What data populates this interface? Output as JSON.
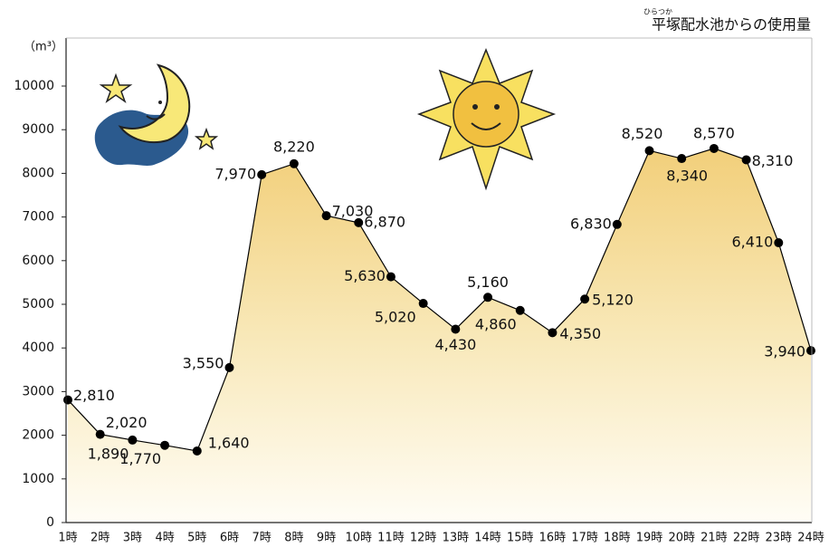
{
  "chart_data": {
    "type": "line",
    "title": "平塚配水池からの使用量",
    "title_ruby": "ひらつか",
    "y_label": "（m³）",
    "categories": [
      "1時",
      "2時",
      "3時",
      "4時",
      "5時",
      "6時",
      "7時",
      "8時",
      "9時",
      "10時",
      "11時",
      "12時",
      "13時",
      "14時",
      "15時",
      "16時",
      "17時",
      "18時",
      "19時",
      "20時",
      "21時",
      "22時",
      "23時",
      "24時"
    ],
    "series": [
      {
        "name": "使用量",
        "color": "#000000",
        "values": [
          2810,
          2020,
          1890,
          1770,
          1640,
          3550,
          7970,
          8220,
          7030,
          6870,
          5630,
          5020,
          4430,
          5160,
          4860,
          4350,
          5120,
          6830,
          8520,
          8340,
          8570,
          8310,
          6410,
          3940
        ],
        "value_labels": [
          "2,810",
          "2,020",
          "1,890",
          "1,770",
          "1,640",
          "3,550",
          "7,970",
          "8,220",
          "7,030",
          "6,870",
          "5,630",
          "5,020",
          "4,430",
          "5,160",
          "4,860",
          "4,350",
          "5,120",
          "6,830",
          "8,520",
          "8,340",
          "8,570",
          "8,310",
          "6,410",
          "3,940"
        ]
      }
    ],
    "ylim": [
      0,
      11100
    ],
    "yticks": [
      0,
      1000,
      2000,
      3000,
      4000,
      5000,
      6000,
      7000,
      8000,
      9000,
      10000
    ],
    "grid": false
  }
}
